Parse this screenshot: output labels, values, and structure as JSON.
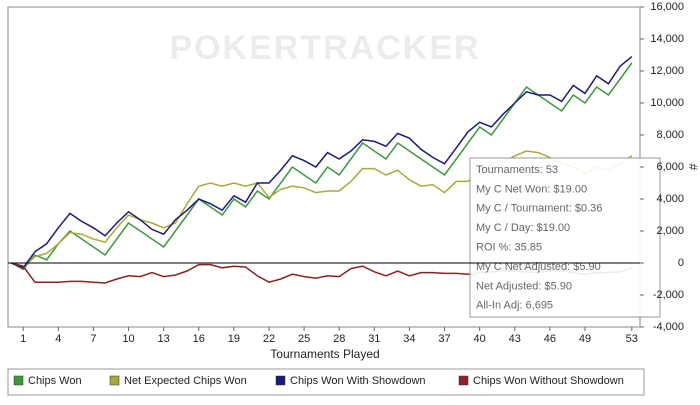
{
  "chart_data": {
    "type": "line",
    "watermark": "POKERTRACKER",
    "xlabel": "Tournaments Played",
    "ylabel": "#",
    "x": [
      0,
      1,
      2,
      3,
      4,
      5,
      6,
      7,
      8,
      9,
      10,
      11,
      12,
      13,
      14,
      15,
      16,
      17,
      18,
      19,
      20,
      21,
      22,
      23,
      24,
      25,
      26,
      27,
      28,
      29,
      30,
      31,
      32,
      33,
      34,
      35,
      36,
      37,
      38,
      39,
      40,
      41,
      42,
      43,
      44,
      45,
      46,
      47,
      48,
      49,
      50,
      51,
      52,
      53
    ],
    "xlim": [
      -0.3,
      53.7
    ],
    "xticks": [
      1,
      4,
      7,
      10,
      13,
      16,
      19,
      22,
      25,
      28,
      31,
      34,
      37,
      40,
      43,
      46,
      49,
      53
    ],
    "ylim": [
      -4000,
      16000
    ],
    "yticks": [
      {
        "value": -4000,
        "label": "-4,000"
      },
      {
        "value": -2000,
        "label": "-2,000"
      },
      0,
      {
        "value": 2000,
        "label": "2,000"
      },
      {
        "value": 4000,
        "label": "4,000"
      },
      {
        "value": 6000,
        "label": "6,000"
      },
      {
        "value": 8000,
        "label": "8,000"
      },
      {
        "value": 10000,
        "label": "10,000"
      },
      {
        "value": 12000,
        "label": "12,000"
      },
      {
        "value": 14000,
        "label": "14,000"
      },
      {
        "value": 16000,
        "label": "16,000"
      }
    ],
    "zero_line": true,
    "series": [
      {
        "name": "Chips Won",
        "color": "#3c9a3c",
        "values": [
          0,
          -400,
          500,
          200,
          1200,
          2000,
          1500,
          1000,
          500,
          1500,
          2500,
          2000,
          1500,
          1000,
          2000,
          3000,
          4000,
          3500,
          3000,
          4000,
          3500,
          4500,
          4000,
          5000,
          6000,
          5500,
          5000,
          6000,
          5500,
          6500,
          7500,
          7000,
          6500,
          7500,
          7000,
          6500,
          6000,
          5500,
          6500,
          7500,
          8500,
          8000,
          9000,
          10000,
          11000,
          10500,
          10000,
          9500,
          10500,
          10000,
          11000,
          10500,
          11500,
          12500
        ]
      },
      {
        "name": "Net Expected Chips Won",
        "color": "#aaaa3a",
        "values": [
          0,
          -300,
          400,
          600,
          1200,
          1900,
          1800,
          1500,
          1300,
          2200,
          3000,
          2700,
          2500,
          2200,
          2500,
          3700,
          4800,
          5000,
          4800,
          5000,
          4800,
          5000,
          4100,
          4600,
          4800,
          4700,
          4400,
          4500,
          4500,
          5100,
          5900,
          5900,
          5500,
          5800,
          5200,
          4800,
          4900,
          4400,
          5100,
          5100,
          5800,
          5900,
          6300,
          6700,
          7000,
          6900,
          6600,
          6200,
          6000,
          5600,
          6000,
          5800,
          6200,
          6700
        ]
      },
      {
        "name": "Chips Won With Showdown",
        "color": "#1a1a80",
        "values": [
          0,
          -300,
          700,
          1200,
          2200,
          3100,
          2600,
          2200,
          1700,
          2500,
          3200,
          2700,
          2100,
          1800,
          2700,
          3300,
          4000,
          3700,
          3300,
          4200,
          3800,
          5000,
          5000,
          5800,
          6700,
          6400,
          6000,
          6900,
          6500,
          7000,
          7700,
          7600,
          7300,
          8100,
          7800,
          7100,
          6600,
          6200,
          7200,
          8200,
          8800,
          8500,
          9300,
          10000,
          10700,
          10500,
          10500,
          10100,
          11100,
          10600,
          11700,
          11200,
          12300,
          12900
        ]
      },
      {
        "name": "Chips Won Without Showdown",
        "color": "#8b2323",
        "values": [
          0,
          -200,
          -1200,
          -1200,
          -1200,
          -1150,
          -1150,
          -1200,
          -1250,
          -1000,
          -800,
          -850,
          -600,
          -850,
          -750,
          -500,
          -100,
          -100,
          -300,
          -200,
          -250,
          -800,
          -1200,
          -1000,
          -700,
          -850,
          -950,
          -800,
          -850,
          -350,
          -200,
          -550,
          -800,
          -500,
          -800,
          -600,
          -600,
          -650,
          -650,
          -700,
          -600,
          -550,
          -500,
          -500,
          -550,
          -600,
          -500,
          -500,
          -600,
          -700,
          -600,
          -600,
          -550,
          -300
        ]
      }
    ],
    "tooltip": [
      "Tournaments: 53",
      "My C Net Won: $19.00",
      "My C / Tournament: $0.36",
      "My C / Day: $19.00",
      "ROI %: 35.85",
      "My C Net Adjusted: $5.90",
      "Net Adjusted: $5.90",
      "All-In Adj: 6,695"
    ]
  }
}
